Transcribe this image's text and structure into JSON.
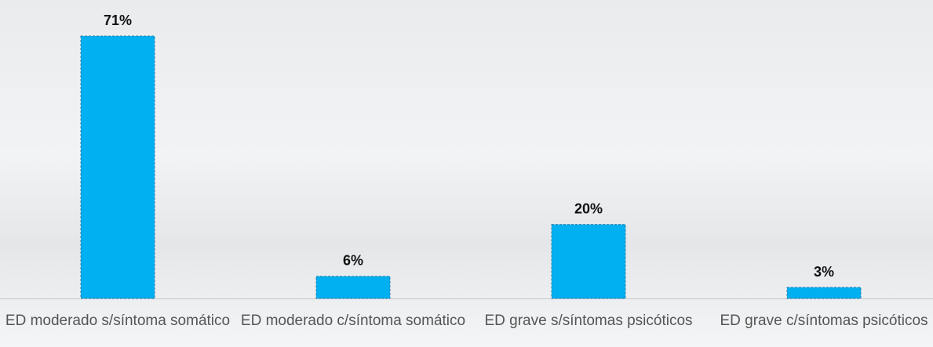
{
  "chart_data": {
    "type": "bar",
    "categories": [
      "ED moderado s/síntoma somático",
      "ED moderado c/síntoma somático",
      "ED grave s/síntomas psicóticos",
      "ED grave c/síntomas psicóticos"
    ],
    "values": [
      71,
      6,
      20,
      3
    ],
    "value_labels": [
      "71%",
      "6%",
      "20%",
      "3%"
    ],
    "color": "#00b0f0"
  }
}
